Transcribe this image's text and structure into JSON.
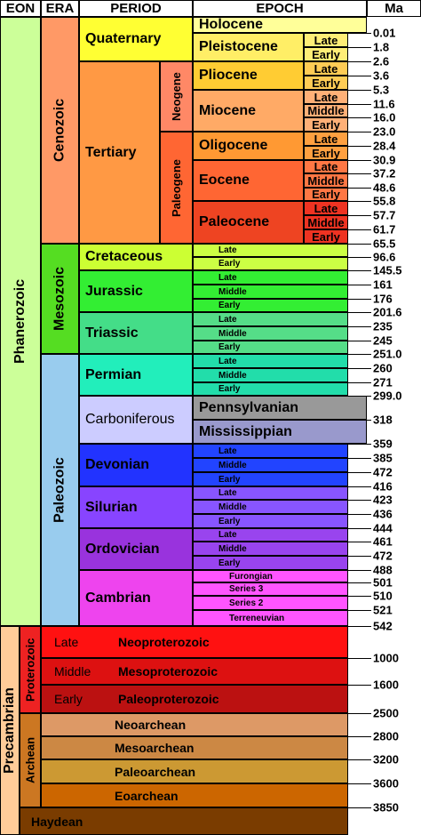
{
  "header": {
    "eon": "EON",
    "era": "ERA",
    "period": "PERIOD",
    "epoch": "EPOCH",
    "ma": "Ma"
  },
  "eons": [
    "Phanerozoic",
    "Precambrian"
  ],
  "eras": [
    "Cenozoic",
    "Mesozoic",
    "Paleozoic",
    "Proterozoic",
    "Archean"
  ],
  "periods": [
    "Quaternary",
    "Tertiary",
    "Neogene",
    "Paleogene",
    "Cretaceous",
    "Jurassic",
    "Triassic",
    "Permian",
    "Carboniferous",
    "Devonian",
    "Silurian",
    "Ordovician",
    "Cambrian"
  ],
  "epochs": [
    "Holocene",
    "Pleistocene",
    "Pliocene",
    "Miocene",
    "Oligocene",
    "Eocene",
    "Paleocene",
    "Pennsylvanian",
    "Mississippian"
  ],
  "subdivisions": [
    "Late",
    "Early",
    "Late",
    "Early",
    "Late",
    "Middle",
    "Early",
    "Late",
    "Early",
    "Late",
    "Middle",
    "Early",
    "Late",
    "Middle",
    "Early",
    "Late",
    "Early",
    "Late",
    "Middle",
    "Early",
    "Late",
    "Middle",
    "Early",
    "Late",
    "Middle",
    "Early",
    "Late",
    "Middle",
    "Early",
    "Late",
    "Middle",
    "Early",
    "Late",
    "Middle",
    "Early",
    "Furongian",
    "Series 3",
    "Series 2",
    "Terreneuvian"
  ],
  "precambrian_rows": [
    {
      "sub": "Late",
      "name": "Neoproterozoic"
    },
    {
      "sub": "Middle",
      "name": "Mesoproterozoic"
    },
    {
      "sub": "Early",
      "name": "Paleoproterozoic"
    },
    {
      "name": "Neoarchean"
    },
    {
      "name": "Mesoarchean"
    },
    {
      "name": "Paleoarchean"
    },
    {
      "name": "Eoarchean"
    },
    {
      "name": "Haydean"
    }
  ],
  "ma": [
    "0.01",
    "1.8",
    "2.6",
    "3.6",
    "5.3",
    "11.6",
    "16.0",
    "23.0",
    "28.4",
    "30.9",
    "37.2",
    "48.6",
    "55.8",
    "57.7",
    "61.7",
    "65.5",
    "96.6",
    "145.5",
    "161",
    "176",
    "201.6",
    "235",
    "245",
    "251.0",
    "260",
    "271",
    "299.0",
    "318",
    "359",
    "385",
    "472",
    "416",
    "423",
    "436",
    "444",
    "461",
    "472",
    "488",
    "501",
    "510",
    "521",
    "542",
    "1000",
    "1600",
    "2500",
    "2800",
    "3200",
    "3600",
    "3850"
  ]
}
